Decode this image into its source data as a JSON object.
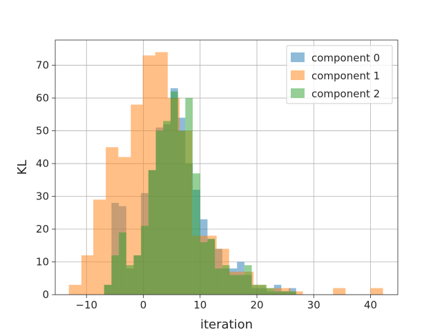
{
  "chart_data": {
    "type": "histogram",
    "title": "",
    "xlabel": "iteration",
    "ylabel": "KL",
    "xlim": [
      -15.5,
      44.8
    ],
    "ylim": [
      0,
      77.7
    ],
    "xticks": [
      -10,
      0,
      10,
      20,
      30,
      40
    ],
    "yticks": [
      0,
      10,
      20,
      30,
      40,
      50,
      60,
      70
    ],
    "grid": true,
    "legend_position": "top-right",
    "series": [
      {
        "name": "component 0",
        "color": "#1f77b4",
        "bins": [
          {
            "x0": -6.9,
            "x1": -5.6,
            "count": 3
          },
          {
            "x0": -5.6,
            "x1": -4.3,
            "count": 28
          },
          {
            "x0": -4.3,
            "x1": -3.0,
            "count": 27
          },
          {
            "x0": -3.0,
            "x1": -1.7,
            "count": 8
          },
          {
            "x0": -1.7,
            "x1": -0.4,
            "count": 12
          },
          {
            "x0": -0.4,
            "x1": 0.9,
            "count": 31
          },
          {
            "x0": 0.9,
            "x1": 2.2,
            "count": 38
          },
          {
            "x0": 2.2,
            "x1": 3.5,
            "count": 51
          },
          {
            "x0": 3.5,
            "x1": 4.8,
            "count": 52
          },
          {
            "x0": 4.8,
            "x1": 6.1,
            "count": 63
          },
          {
            "x0": 6.1,
            "x1": 7.4,
            "count": 54
          },
          {
            "x0": 7.4,
            "x1": 8.7,
            "count": 40
          },
          {
            "x0": 8.7,
            "x1": 10.0,
            "count": 32
          },
          {
            "x0": 10.0,
            "x1": 11.3,
            "count": 23
          },
          {
            "x0": 11.3,
            "x1": 12.6,
            "count": 17
          },
          {
            "x0": 12.6,
            "x1": 13.9,
            "count": 14
          },
          {
            "x0": 13.9,
            "x1": 15.2,
            "count": 8
          },
          {
            "x0": 15.2,
            "x1": 16.5,
            "count": 8
          },
          {
            "x0": 16.5,
            "x1": 17.8,
            "count": 10
          },
          {
            "x0": 17.8,
            "x1": 19.1,
            "count": 6
          },
          {
            "x0": 19.1,
            "x1": 20.4,
            "count": 2
          },
          {
            "x0": 20.4,
            "x1": 21.7,
            "count": 2
          },
          {
            "x0": 21.7,
            "x1": 23.0,
            "count": 1
          },
          {
            "x0": 23.0,
            "x1": 24.3,
            "count": 3
          },
          {
            "x0": 24.3,
            "x1": 25.6,
            "count": 1
          },
          {
            "x0": 25.6,
            "x1": 26.9,
            "count": 2
          }
        ]
      },
      {
        "name": "component 1",
        "color": "#ff7f0e",
        "bins": [
          {
            "x0": -13.1,
            "x1": -10.9,
            "count": 3
          },
          {
            "x0": -10.9,
            "x1": -8.8,
            "count": 12
          },
          {
            "x0": -8.8,
            "x1": -6.6,
            "count": 29
          },
          {
            "x0": -6.6,
            "x1": -4.4,
            "count": 45
          },
          {
            "x0": -4.4,
            "x1": -2.2,
            "count": 42
          },
          {
            "x0": -2.2,
            "x1": -0.1,
            "count": 58
          },
          {
            "x0": -0.1,
            "x1": 2.1,
            "count": 73
          },
          {
            "x0": 2.1,
            "x1": 4.3,
            "count": 74
          },
          {
            "x0": 4.3,
            "x1": 6.4,
            "count": 60
          },
          {
            "x0": 6.4,
            "x1": 8.6,
            "count": 50
          },
          {
            "x0": 8.6,
            "x1": 10.8,
            "count": 18
          },
          {
            "x0": 10.8,
            "x1": 12.9,
            "count": 18
          },
          {
            "x0": 12.9,
            "x1": 15.1,
            "count": 14
          },
          {
            "x0": 15.1,
            "x1": 17.3,
            "count": 7
          },
          {
            "x0": 17.3,
            "x1": 19.4,
            "count": 7
          },
          {
            "x0": 19.4,
            "x1": 21.6,
            "count": 3
          },
          {
            "x0": 21.6,
            "x1": 23.8,
            "count": 2
          },
          {
            "x0": 23.8,
            "x1": 25.9,
            "count": 2
          },
          {
            "x0": 25.9,
            "x1": 28.1,
            "count": 1
          },
          {
            "x0": 33.4,
            "x1": 35.6,
            "count": 2
          },
          {
            "x0": 40.0,
            "x1": 42.2,
            "count": 2
          }
        ]
      },
      {
        "name": "component 2",
        "color": "#2ca02c",
        "bins": [
          {
            "x0": -6.9,
            "x1": -5.6,
            "count": 3
          },
          {
            "x0": -5.6,
            "x1": -4.3,
            "count": 12
          },
          {
            "x0": -4.3,
            "x1": -3.0,
            "count": 19
          },
          {
            "x0": -3.0,
            "x1": -1.7,
            "count": 9
          },
          {
            "x0": -1.7,
            "x1": -0.4,
            "count": 12
          },
          {
            "x0": -0.4,
            "x1": 0.9,
            "count": 21
          },
          {
            "x0": 0.9,
            "x1": 2.2,
            "count": 38
          },
          {
            "x0": 2.2,
            "x1": 3.5,
            "count": 50
          },
          {
            "x0": 3.5,
            "x1": 4.8,
            "count": 53
          },
          {
            "x0": 4.8,
            "x1": 6.1,
            "count": 62
          },
          {
            "x0": 6.1,
            "x1": 7.4,
            "count": 50
          },
          {
            "x0": 7.4,
            "x1": 8.7,
            "count": 60
          },
          {
            "x0": 8.7,
            "x1": 10.0,
            "count": 37
          },
          {
            "x0": 10.0,
            "x1": 11.3,
            "count": 16
          },
          {
            "x0": 11.3,
            "x1": 12.6,
            "count": 17
          },
          {
            "x0": 12.6,
            "x1": 13.9,
            "count": 8
          },
          {
            "x0": 13.9,
            "x1": 15.2,
            "count": 9
          },
          {
            "x0": 15.2,
            "x1": 16.5,
            "count": 6
          },
          {
            "x0": 16.5,
            "x1": 17.8,
            "count": 6
          },
          {
            "x0": 17.8,
            "x1": 19.1,
            "count": 9
          },
          {
            "x0": 19.1,
            "x1": 20.4,
            "count": 3
          },
          {
            "x0": 20.4,
            "x1": 21.7,
            "count": 3
          },
          {
            "x0": 21.7,
            "x1": 23.0,
            "count": 2
          },
          {
            "x0": 23.0,
            "x1": 24.3,
            "count": 1
          },
          {
            "x0": 24.3,
            "x1": 25.6,
            "count": 1
          },
          {
            "x0": 25.6,
            "x1": 26.9,
            "count": 1
          }
        ]
      }
    ]
  }
}
